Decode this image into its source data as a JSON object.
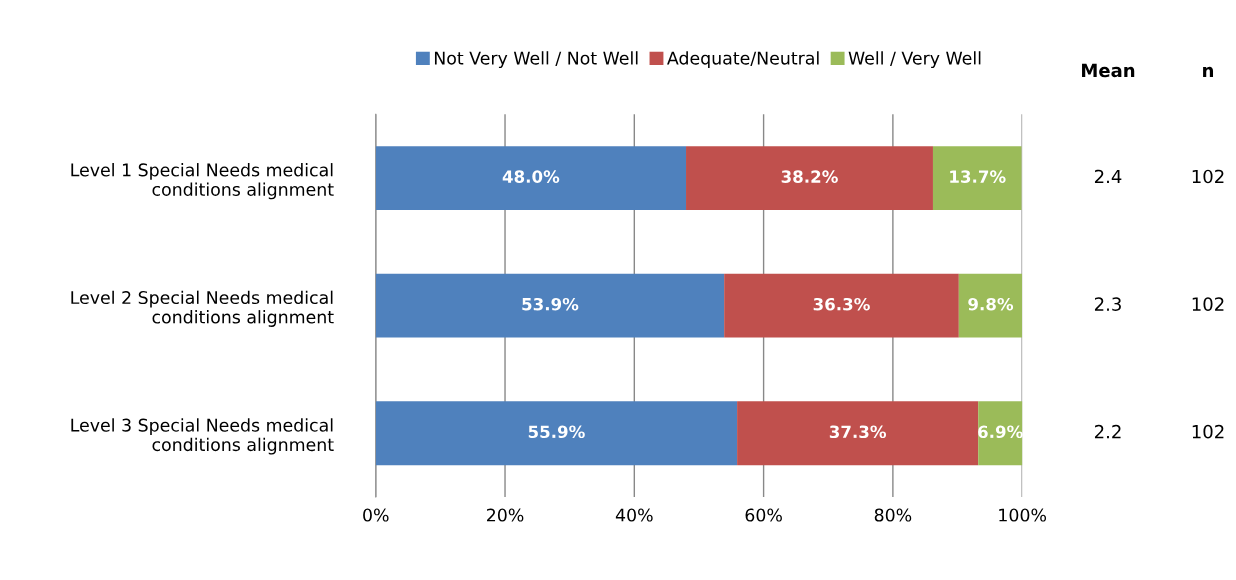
{
  "chart_data": {
    "type": "bar",
    "orientation": "horizontal",
    "stacked": true,
    "categories": [
      "Level 1 Special Needs medical\nconditions alignment",
      "Level 2 Special Needs medical\nconditions alignment",
      "Level 3 Special Needs medical\nconditions alignment"
    ],
    "series": [
      {
        "name": "Not Very Well / Not Well",
        "color": "#4f81bd",
        "values": [
          48.0,
          53.9,
          55.9
        ],
        "value_labels": [
          "48.0%",
          "53.9%",
          "55.9%"
        ]
      },
      {
        "name": "Adequate/Neutral",
        "color": "#c0504d",
        "values": [
          38.2,
          36.3,
          37.3
        ],
        "value_labels": [
          "38.2%",
          "36.3%",
          "37.3%"
        ]
      },
      {
        "name": "Well / Very Well",
        "color": "#9bbb59",
        "values": [
          13.7,
          9.8,
          6.9
        ],
        "value_labels": [
          "13.7%",
          "9.8%",
          "6.9%"
        ]
      }
    ],
    "xlim": [
      0,
      100
    ],
    "xticks": [
      {
        "value": 0,
        "label": "0%"
      },
      {
        "value": 20,
        "label": "20%"
      },
      {
        "value": 40,
        "label": "40%"
      },
      {
        "value": 60,
        "label": "60%"
      },
      {
        "value": 80,
        "label": "80%"
      },
      {
        "value": 100,
        "label": "100%"
      }
    ],
    "grid": "x",
    "legend": "top",
    "annotations": [
      "Mean",
      "n",
      "2.4",
      "102",
      "2.3",
      "102",
      "2.2",
      "102"
    ]
  }
}
